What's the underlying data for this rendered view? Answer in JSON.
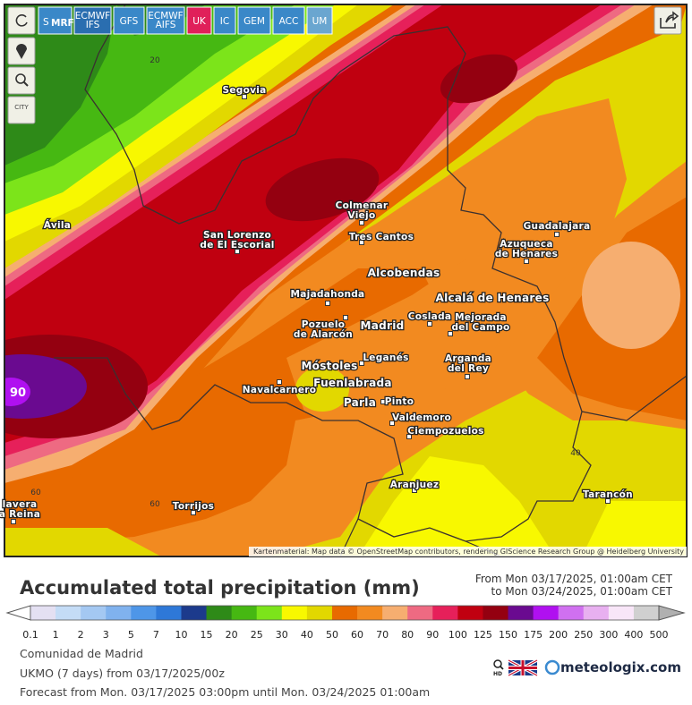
{
  "toolbar": {
    "models": [
      {
        "lines": [
          "S",
          "MRF"
        ]
      },
      {
        "lines": [
          "ECMWF",
          "IFS"
        ]
      },
      {
        "lines": [
          "GFS"
        ]
      },
      {
        "lines": [
          "ECMWF",
          "AIFS"
        ]
      },
      {
        "lines": [
          "UK"
        ]
      },
      {
        "lines": [
          "IC"
        ]
      },
      {
        "lines": [
          "GEM"
        ]
      },
      {
        "lines": [
          "ACC"
        ]
      },
      {
        "lines": [
          "UM"
        ]
      }
    ],
    "city_toggle": "CITY"
  },
  "cities": [
    {
      "lines": [
        "Segovia"
      ]
    },
    {
      "lines": [
        "Ávila"
      ]
    },
    {
      "lines": [
        "San Lorenzo",
        "de El Escorial"
      ]
    },
    {
      "lines": [
        "Colmenar",
        "Viejo"
      ]
    },
    {
      "lines": [
        "Tres Cantos"
      ]
    },
    {
      "lines": [
        "Alcobendas"
      ]
    },
    {
      "lines": [
        "Majadahonda"
      ]
    },
    {
      "lines": [
        "Guadalajara"
      ]
    },
    {
      "lines": [
        "Azuqueca",
        "de Henares"
      ]
    },
    {
      "lines": [
        "Alcalá de Henares"
      ]
    },
    {
      "lines": [
        "Pozuelo",
        "de Alarcón"
      ]
    },
    {
      "lines": [
        "Madrid"
      ]
    },
    {
      "lines": [
        "Coslada"
      ]
    },
    {
      "lines": [
        "Mejorada",
        "del Campo"
      ]
    },
    {
      "lines": [
        "Móstoles"
      ]
    },
    {
      "lines": [
        "Leganés"
      ]
    },
    {
      "lines": [
        "Arganda",
        "del Rey"
      ]
    },
    {
      "lines": [
        "Navalcarnero"
      ]
    },
    {
      "lines": [
        "Fuenlabrada"
      ]
    },
    {
      "lines": [
        "Parla"
      ]
    },
    {
      "lines": [
        "Pinto"
      ]
    },
    {
      "lines": [
        "Valdemoro"
      ]
    },
    {
      "lines": [
        "Ciempozuelos"
      ]
    },
    {
      "lines": [
        "Aranjuez"
      ]
    },
    {
      "lines": [
        "lavera",
        "a Reina"
      ]
    },
    {
      "lines": [
        "Torrijos"
      ]
    },
    {
      "lines": [
        "Tarancón"
      ]
    }
  ],
  "contour_labels": [
    "20",
    "90",
    "40",
    "60",
    "60"
  ],
  "attribution": "Kartenmaterial: Map data © OpenStreetMap contributors, rendering GIScience Research Group @ Heidelberg University",
  "header": {
    "title": "Accumulated total precipitation (mm)",
    "date_from": "From Mon 03/17/2025, 01:00am CET",
    "date_to": "to Mon 03/24/2025, 01:00am CET"
  },
  "legend": {
    "labels": [
      "0.1",
      "1",
      "2",
      "3",
      "5",
      "7",
      "10",
      "15",
      "20",
      "25",
      "30",
      "40",
      "50",
      "60",
      "70",
      "80",
      "90",
      "100",
      "125",
      "150",
      "175",
      "200",
      "250",
      "300",
      "400",
      "500"
    ],
    "colors": [
      "#e4e0f2",
      "#c4dcf6",
      "#a4c8f2",
      "#80b2ee",
      "#4e96e8",
      "#2e78d8",
      "#1c3a8c",
      "#2e8a18",
      "#46b812",
      "#7ce41a",
      "#f8f800",
      "#e2d800",
      "#e86a00",
      "#f28a20",
      "#f6ae70",
      "#ee6a82",
      "#e6205a",
      "#c00010",
      "#940010",
      "#6a0a90",
      "#b010f0",
      "#d070f0",
      "#e8b0f0",
      "#f8e6f8",
      "#d0d0d0"
    ]
  },
  "footer": {
    "region": "Comunidad de Madrid",
    "model": "UKMO (7 days) from 03/17/2025/00z",
    "forecast": "Forecast from Mon. 03/17/2025 03:00pm until Mon. 03/24/2025 01:00am",
    "hd": "HD",
    "brand": "meteologix.com"
  }
}
